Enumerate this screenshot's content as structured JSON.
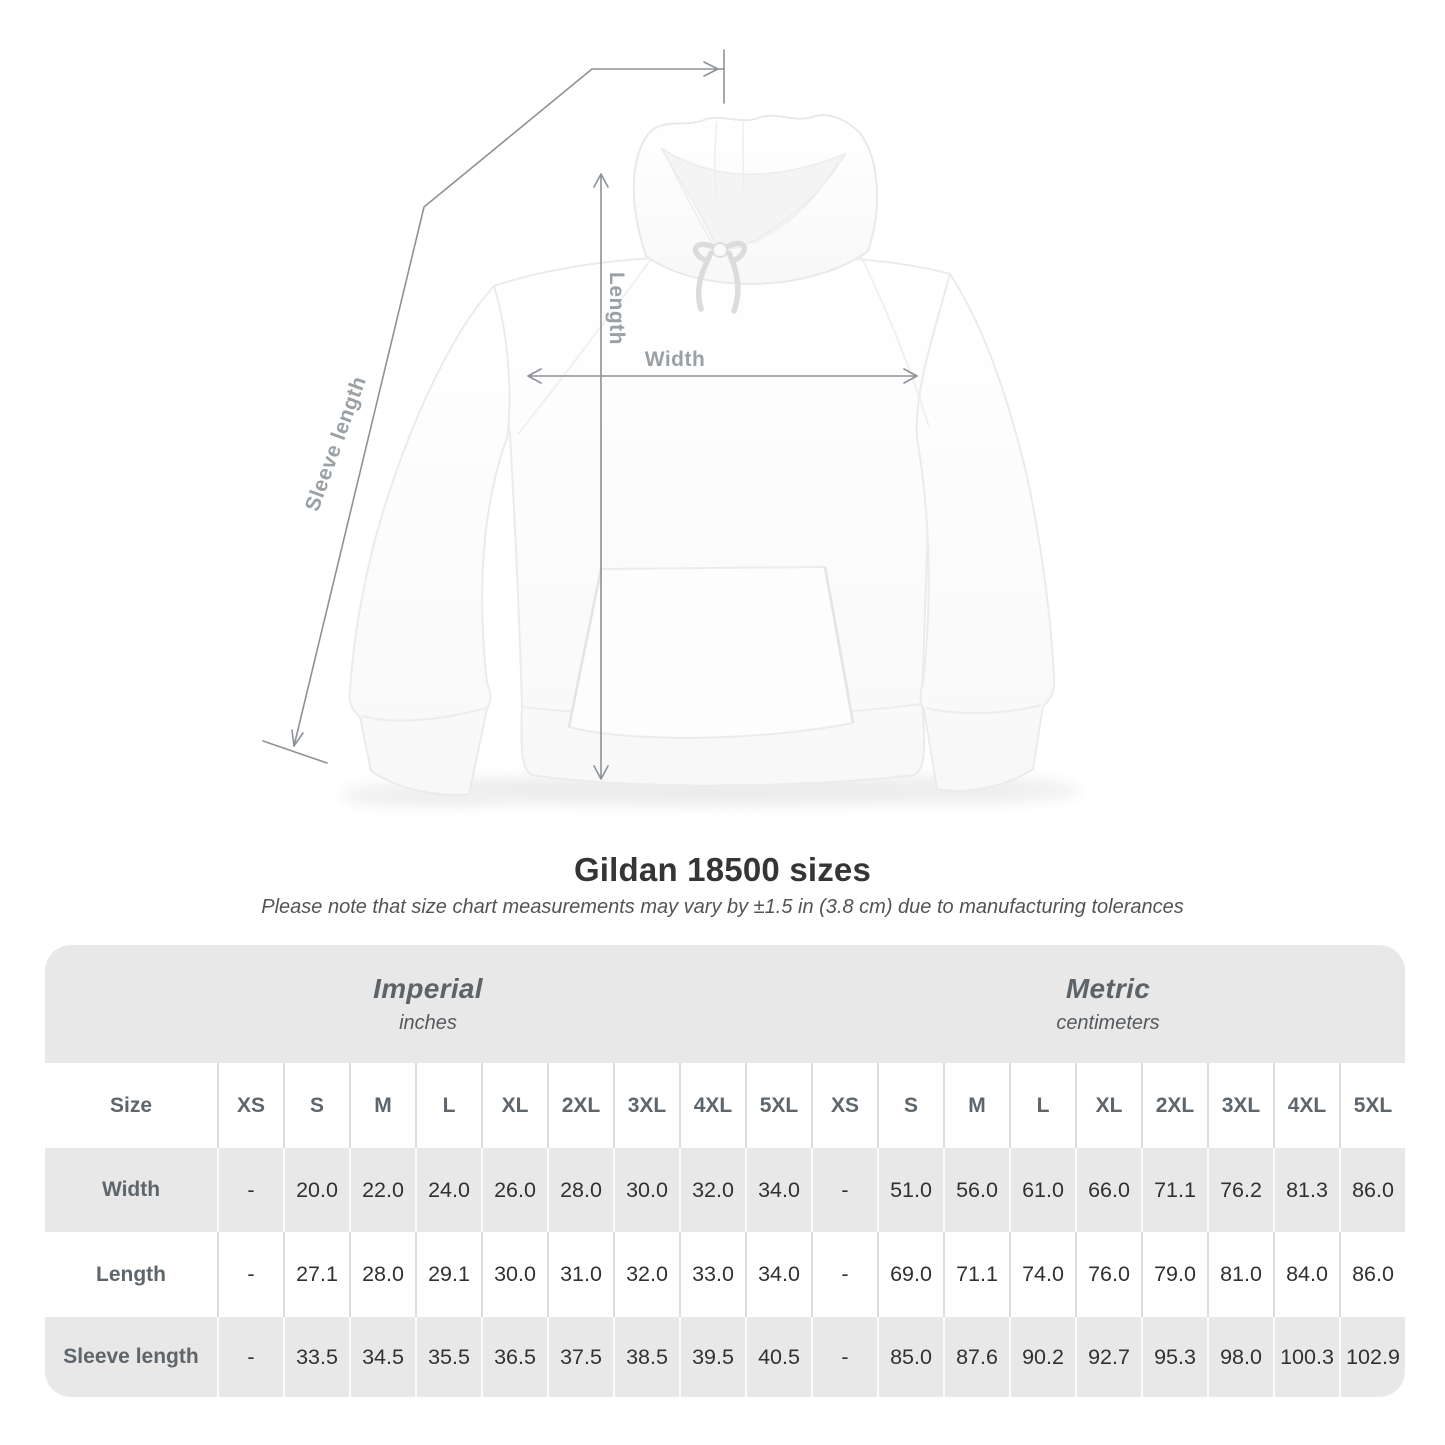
{
  "figure": {
    "labels": {
      "sleeve": "Sleeve length",
      "length": "Length",
      "width": "Width"
    }
  },
  "title": "Gildan 18500 sizes",
  "note": "Please note that size chart measurements may vary by ±1.5 in (3.8 cm) due to manufacturing tolerances",
  "table": {
    "size_header": "Size",
    "sections": [
      {
        "name": "Imperial",
        "unit": "inches"
      },
      {
        "name": "Metric",
        "unit": "centimeters"
      }
    ],
    "sizes": [
      "XS",
      "S",
      "M",
      "L",
      "XL",
      "2XL",
      "3XL",
      "4XL",
      "5XL"
    ],
    "rows": [
      {
        "label": "Width",
        "imperial": [
          "-",
          "20.0",
          "22.0",
          "24.0",
          "26.0",
          "28.0",
          "30.0",
          "32.0",
          "34.0"
        ],
        "metric": [
          "-",
          "51.0",
          "56.0",
          "61.0",
          "66.0",
          "71.1",
          "76.2",
          "81.3",
          "86.0"
        ]
      },
      {
        "label": "Length",
        "imperial": [
          "-",
          "27.1",
          "28.0",
          "29.1",
          "30.0",
          "31.0",
          "32.0",
          "33.0",
          "34.0"
        ],
        "metric": [
          "-",
          "69.0",
          "71.1",
          "74.0",
          "76.0",
          "79.0",
          "81.0",
          "84.0",
          "86.0"
        ]
      },
      {
        "label": "Sleeve length",
        "imperial": [
          "-",
          "33.5",
          "34.5",
          "35.5",
          "36.5",
          "37.5",
          "38.5",
          "39.5",
          "40.5"
        ],
        "metric": [
          "-",
          "85.0",
          "87.6",
          "90.2",
          "92.7",
          "95.3",
          "98.0",
          "100.3",
          "102.9"
        ]
      }
    ]
  },
  "colors": {
    "band_gray": "#e9e8e8",
    "header_text": "#5f666b",
    "value_text": "#2f3133",
    "arrow": "#8d9298",
    "figure_label": "#9aa0a4"
  }
}
